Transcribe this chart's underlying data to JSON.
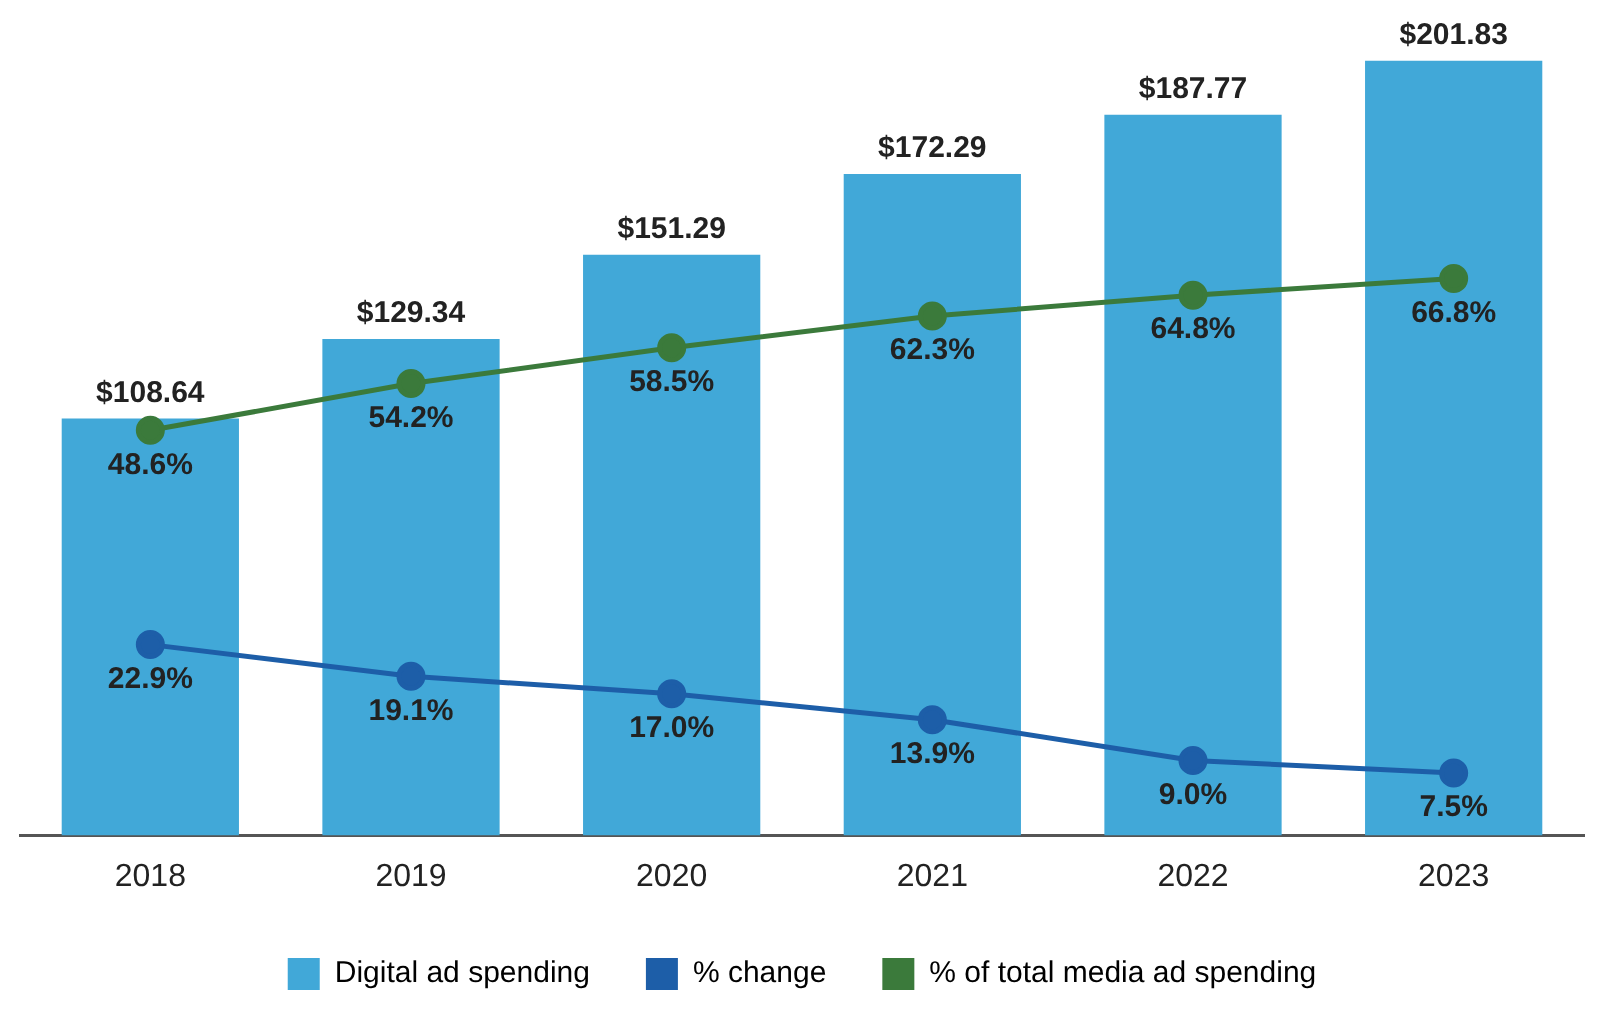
{
  "chart_data": {
    "type": "bar",
    "categories": [
      "2018",
      "2019",
      "2020",
      "2021",
      "2022",
      "2023"
    ],
    "series": [
      {
        "name": "Digital ad spending",
        "color": "#41a8d8",
        "values": [
          108.64,
          129.34,
          151.29,
          172.29,
          187.77,
          201.83
        ],
        "value_labels": [
          "$108.64",
          "$129.34",
          "$151.29",
          "$172.29",
          "$187.77",
          "$201.83"
        ]
      },
      {
        "name": "% change",
        "type": "line",
        "axis": "y2",
        "color": "#1d5ea8",
        "values": [
          22.9,
          19.1,
          17.0,
          13.9,
          9.0,
          7.5
        ],
        "value_labels": [
          "22.9%",
          "19.1%",
          "17.0%",
          "13.9%",
          "9.0%",
          "7.5%"
        ]
      },
      {
        "name": "% of total media ad spending",
        "type": "line",
        "axis": "y2",
        "color": "#3b7a3b",
        "values": [
          48.6,
          54.2,
          58.5,
          62.3,
          64.8,
          66.8
        ],
        "value_labels": [
          "48.6%",
          "54.2%",
          "58.5%",
          "62.3%",
          "64.8%",
          "66.8%"
        ]
      }
    ],
    "ylim": [
      0,
      202
    ],
    "y2lim": [
      0,
      93
    ],
    "tick_labels": "x",
    "legend": "bottom",
    "marker": "circle",
    "line_style": "solid"
  }
}
